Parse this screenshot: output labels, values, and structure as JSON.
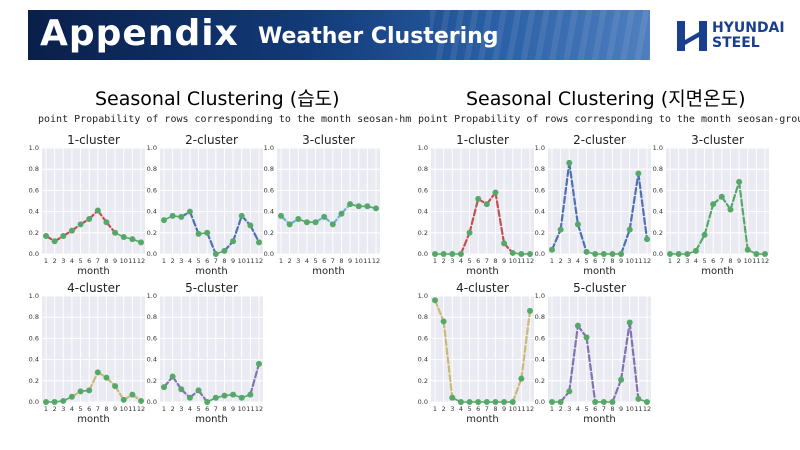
{
  "header": {
    "title": "Appendix",
    "subtitle": "Weather Clustering",
    "logo_line1": "HYUNDAI",
    "logo_line2": "STEEL"
  },
  "colors": {
    "banner": "#123a78",
    "plot_bg": "#eaeaf2",
    "point": "#55a868",
    "logo": "#1a3f8f"
  },
  "left": {
    "title": "Seasonal Clustering (습도)",
    "subtitle": "point Propability of rows corresponding to the month seosan-hm"
  },
  "right": {
    "title": "Seasonal Clustering (지면온도)",
    "subtitle": "point Propability of rows corresponding to the month seosan-ground"
  },
  "chart_data": [
    {
      "type": "line",
      "group": "left",
      "title": "1-cluster",
      "xlabel": "month",
      "x": [
        1,
        2,
        3,
        4,
        5,
        6,
        7,
        8,
        9,
        10,
        11,
        12
      ],
      "ylim": [
        0,
        1
      ],
      "y_ticks": [
        "0.0",
        "0.2",
        "0.4",
        "0.6",
        "0.8",
        "1.0"
      ],
      "x_ticks": [
        "1",
        "2",
        "3",
        "4",
        "5",
        "6",
        "7",
        "8",
        "9",
        "10",
        "11",
        "12"
      ],
      "values": [
        0.17,
        0.12,
        0.17,
        0.22,
        0.28,
        0.33,
        0.41,
        0.3,
        0.2,
        0.16,
        0.14,
        0.11
      ],
      "dashed_color": "#c44e52"
    },
    {
      "type": "line",
      "group": "left",
      "title": "2-cluster",
      "xlabel": "month",
      "x": [
        1,
        2,
        3,
        4,
        5,
        6,
        7,
        8,
        9,
        10,
        11,
        12
      ],
      "ylim": [
        0,
        1
      ],
      "y_ticks": [
        "0.0",
        "0.2",
        "0.4",
        "0.6",
        "0.8",
        "1.0"
      ],
      "x_ticks": [
        "1",
        "2",
        "3",
        "4",
        "5",
        "6",
        "7",
        "8",
        "9",
        "10",
        "11",
        "12"
      ],
      "values": [
        0.32,
        0.36,
        0.35,
        0.4,
        0.19,
        0.2,
        0.0,
        0.03,
        0.12,
        0.36,
        0.27,
        0.11
      ],
      "dashed_color": "#4c72b0"
    },
    {
      "type": "line",
      "group": "left",
      "title": "3-cluster",
      "xlabel": "month",
      "x": [
        1,
        2,
        3,
        4,
        5,
        6,
        7,
        8,
        9,
        10,
        11,
        12
      ],
      "ylim": [
        0,
        1
      ],
      "y_ticks": [
        "0.0",
        "0.2",
        "0.4",
        "0.6",
        "0.8",
        "1.0"
      ],
      "x_ticks": [
        "1",
        "2",
        "3",
        "4",
        "5",
        "6",
        "7",
        "8",
        "9",
        "10",
        "11",
        "12"
      ],
      "values": [
        0.36,
        0.28,
        0.33,
        0.3,
        0.3,
        0.35,
        0.28,
        0.38,
        0.47,
        0.45,
        0.45,
        0.43
      ],
      "dashed_color": "#64b5cd"
    },
    {
      "type": "line",
      "group": "left",
      "title": "4-cluster",
      "xlabel": "month",
      "x": [
        1,
        2,
        3,
        4,
        5,
        6,
        7,
        8,
        9,
        10,
        11,
        12
      ],
      "ylim": [
        0,
        1
      ],
      "y_ticks": [
        "0.0",
        "0.2",
        "0.4",
        "0.6",
        "0.8",
        "1.0"
      ],
      "x_ticks": [
        "1",
        "2",
        "3",
        "4",
        "5",
        "6",
        "7",
        "8",
        "9",
        "10",
        "11",
        "12"
      ],
      "values": [
        0.0,
        0.0,
        0.01,
        0.05,
        0.1,
        0.11,
        0.28,
        0.23,
        0.15,
        0.02,
        0.07,
        0.01
      ],
      "dashed_color": "#ccb974"
    },
    {
      "type": "line",
      "group": "left",
      "title": "5-cluster",
      "xlabel": "month",
      "x": [
        1,
        2,
        3,
        4,
        5,
        6,
        7,
        8,
        9,
        10,
        11,
        12
      ],
      "ylim": [
        0,
        1
      ],
      "y_ticks": [
        "0.0",
        "0.2",
        "0.4",
        "0.6",
        "0.8",
        "1.0"
      ],
      "x_ticks": [
        "1",
        "2",
        "3",
        "4",
        "5",
        "6",
        "7",
        "8",
        "9",
        "10",
        "11",
        "12"
      ],
      "values": [
        0.14,
        0.24,
        0.12,
        0.04,
        0.11,
        0.0,
        0.04,
        0.06,
        0.07,
        0.04,
        0.07,
        0.36
      ],
      "dashed_color": "#8172b2"
    },
    {
      "type": "line",
      "group": "right",
      "title": "1-cluster",
      "xlabel": "month",
      "x": [
        1,
        2,
        3,
        4,
        5,
        6,
        7,
        8,
        9,
        10,
        11,
        12
      ],
      "ylim": [
        0,
        1
      ],
      "y_ticks": [
        "0.0",
        "0.2",
        "0.4",
        "0.6",
        "0.8",
        "1.0"
      ],
      "x_ticks": [
        "1",
        "2",
        "3",
        "4",
        "5",
        "6",
        "7",
        "8",
        "9",
        "10",
        "11",
        "12"
      ],
      "values": [
        0.0,
        0.0,
        0.0,
        0.0,
        0.2,
        0.52,
        0.47,
        0.58,
        0.1,
        0.01,
        0.0,
        0.0
      ],
      "dashed_color": "#c44e52"
    },
    {
      "type": "line",
      "group": "right",
      "title": "2-cluster",
      "xlabel": "month",
      "x": [
        1,
        2,
        3,
        4,
        5,
        6,
        7,
        8,
        9,
        10,
        11,
        12
      ],
      "ylim": [
        0,
        1
      ],
      "y_ticks": [
        "0.0",
        "0.2",
        "0.4",
        "0.6",
        "0.8",
        "1.0"
      ],
      "x_ticks": [
        "1",
        "2",
        "3",
        "4",
        "5",
        "6",
        "7",
        "8",
        "9",
        "10",
        "11",
        "12"
      ],
      "values": [
        0.04,
        0.23,
        0.86,
        0.28,
        0.02,
        0.0,
        0.0,
        0.0,
        0.0,
        0.23,
        0.76,
        0.14
      ],
      "dashed_color": "#4c72b0"
    },
    {
      "type": "line",
      "group": "right",
      "title": "3-cluster",
      "xlabel": "month",
      "x": [
        1,
        2,
        3,
        4,
        5,
        6,
        7,
        8,
        9,
        10,
        11,
        12
      ],
      "ylim": [
        0,
        1
      ],
      "y_ticks": [
        "0.0",
        "0.2",
        "0.4",
        "0.6",
        "0.8",
        "1.0"
      ],
      "x_ticks": [
        "1",
        "2",
        "3",
        "4",
        "5",
        "6",
        "7",
        "8",
        "9",
        "10",
        "11",
        "12"
      ],
      "values": [
        0.0,
        0.0,
        0.0,
        0.03,
        0.18,
        0.47,
        0.54,
        0.42,
        0.68,
        0.04,
        0.0,
        0.0
      ],
      "dashed_color": "#55a868"
    },
    {
      "type": "line",
      "group": "right",
      "title": "4-cluster",
      "xlabel": "month",
      "x": [
        1,
        2,
        3,
        4,
        5,
        6,
        7,
        8,
        9,
        10,
        11,
        12
      ],
      "ylim": [
        0,
        1
      ],
      "y_ticks": [
        "0.0",
        "0.2",
        "0.4",
        "0.6",
        "0.8",
        "1.0"
      ],
      "x_ticks": [
        "1",
        "2",
        "3",
        "4",
        "5",
        "6",
        "7",
        "8",
        "9",
        "10",
        "11",
        "12"
      ],
      "values": [
        0.96,
        0.76,
        0.04,
        0.0,
        0.0,
        0.0,
        0.0,
        0.0,
        0.0,
        0.0,
        0.22,
        0.86
      ],
      "dashed_color": "#ccb974"
    },
    {
      "type": "line",
      "group": "right",
      "title": "5-cluster",
      "xlabel": "month",
      "x": [
        1,
        2,
        3,
        4,
        5,
        6,
        7,
        8,
        9,
        10,
        11,
        12
      ],
      "ylim": [
        0,
        1
      ],
      "y_ticks": [
        "0.0",
        "0.2",
        "0.4",
        "0.6",
        "0.8",
        "1.0"
      ],
      "x_ticks": [
        "1",
        "2",
        "3",
        "4",
        "5",
        "6",
        "7",
        "8",
        "9",
        "10",
        "11",
        "12"
      ],
      "values": [
        0.0,
        0.0,
        0.1,
        0.72,
        0.61,
        0.0,
        0.0,
        0.0,
        0.21,
        0.75,
        0.03,
        0.0
      ],
      "dashed_color": "#8172b2"
    }
  ]
}
